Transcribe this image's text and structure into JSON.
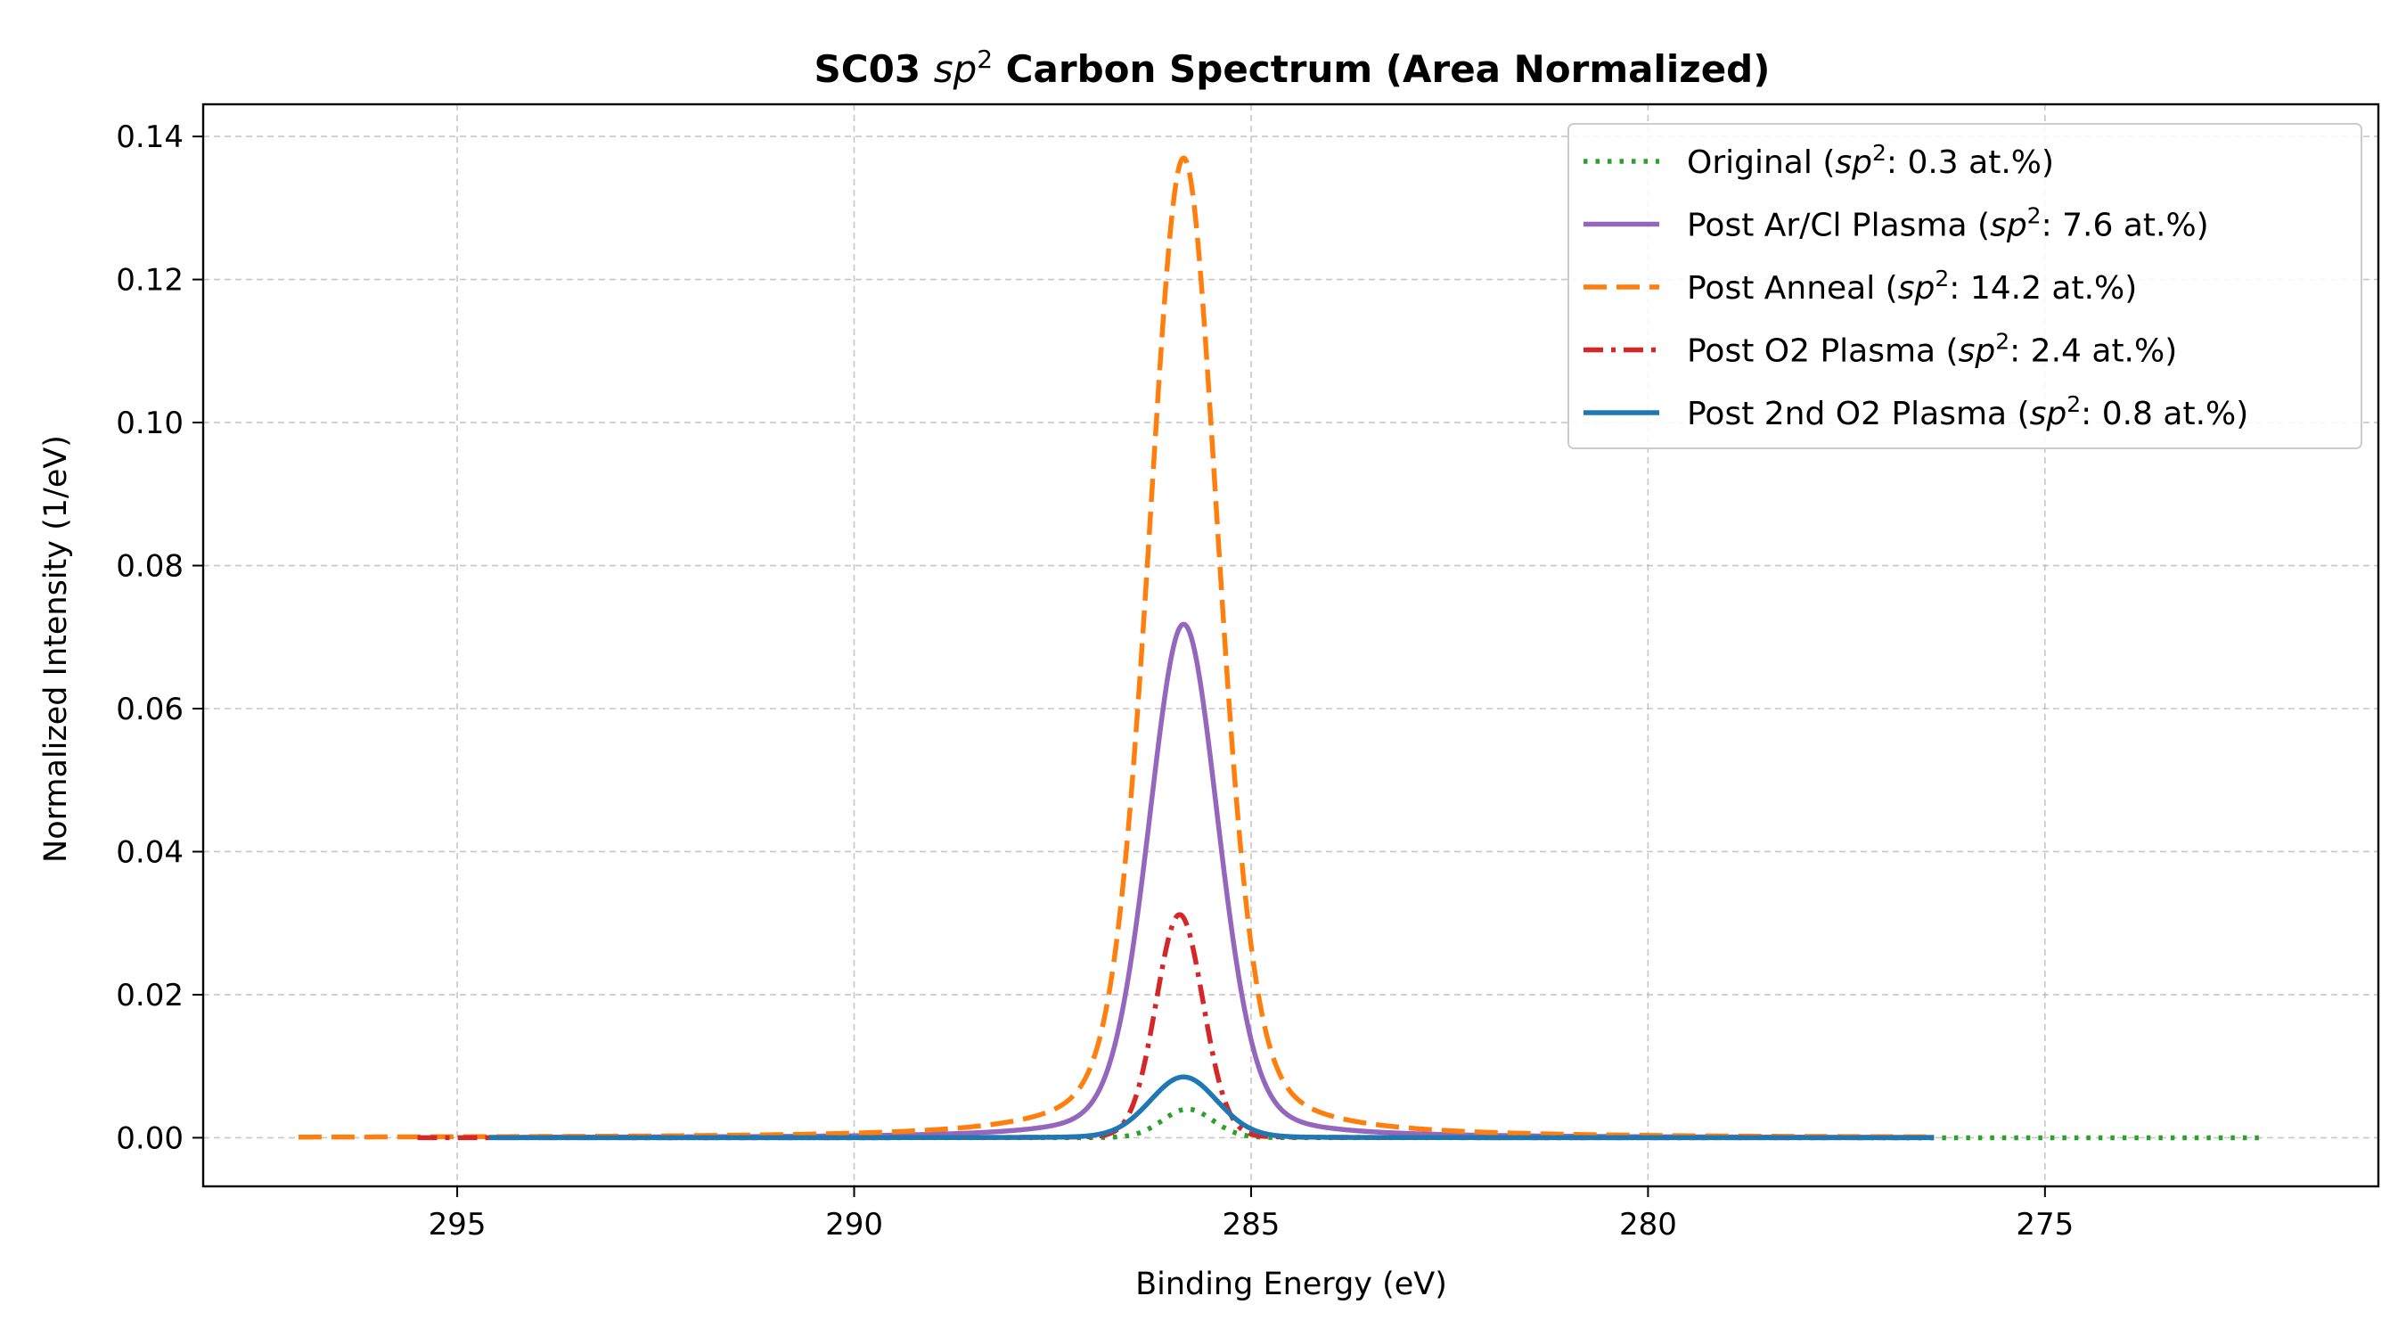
{
  "chart_data": {
    "type": "line",
    "title": {
      "prefix": "SC03 ",
      "math_base": "sp",
      "math_sup": "2",
      "suffix": " Carbon Spectrum (Area Normalized)"
    },
    "xlabel": "Binding Energy (eV)",
    "ylabel": "Normalized Intensity (1/eV)",
    "xlim": [
      298.2,
      270.8
    ],
    "ylim": [
      -0.0068,
      0.1445
    ],
    "x_inverted": true,
    "x_ticks": [
      295,
      290,
      285,
      280,
      275
    ],
    "y_ticks": [
      0.0,
      0.02,
      0.04,
      0.06,
      0.08,
      0.1,
      0.12,
      0.14
    ],
    "y_tick_labels": [
      "0.00",
      "0.02",
      "0.04",
      "0.06",
      "0.08",
      "0.10",
      "0.12",
      "0.14"
    ],
    "grid": true,
    "legend_position": "top-right",
    "series": [
      {
        "name": "Original",
        "legend_label": {
          "prefix": "Original (",
          "math_base": "sp",
          "math_sup": "2",
          "suffix": ": 0.3 at.%)"
        },
        "color": "#2ca02c",
        "style": "dotted",
        "x_range": [
          292.8,
          272.3
        ],
        "peak_center": 285.8,
        "peak_height": 0.004,
        "peak_fwhm": 0.75,
        "lorentz_fraction": 0.05
      },
      {
        "name": "Post Ar/Cl Plasma",
        "legend_label": {
          "prefix": "Post Ar/Cl Plasma (",
          "math_base": "sp",
          "math_sup": "2",
          "suffix": ": 7.6 at.%)"
        },
        "color": "#9467bd",
        "style": "solid",
        "x_range": [
          294.6,
          276.4
        ],
        "peak_center": 285.85,
        "peak_height": 0.0718,
        "peak_fwhm": 1.05,
        "lorentz_fraction": 0.25
      },
      {
        "name": "Post Anneal",
        "legend_label": {
          "prefix": "Post Anneal (",
          "math_base": "sp",
          "math_sup": "2",
          "suffix": ": 14.2 at.%)"
        },
        "color": "#ff7f0e",
        "style": "dashed",
        "x_range": [
          297.0,
          276.4
        ],
        "peak_center": 285.85,
        "peak_height": 0.137,
        "peak_fwhm": 1.05,
        "lorentz_fraction": 0.3
      },
      {
        "name": "Post O2 Plasma",
        "legend_label": {
          "prefix": "Post O2 Plasma (",
          "math_base": "sp",
          "math_sup": "2",
          "suffix": ": 2.4 at.%)"
        },
        "color": "#d62728",
        "style": "dashdot",
        "x_range": [
          295.5,
          276.4
        ],
        "peak_center": 285.9,
        "peak_height": 0.0312,
        "peak_fwhm": 0.7,
        "lorentz_fraction": 0.05
      },
      {
        "name": "Post 2nd O2 Plasma",
        "legend_label": {
          "prefix": "Post 2nd O2 Plasma (",
          "math_base": "sp",
          "math_sup": "2",
          "suffix": ": 0.8 at.%)"
        },
        "color": "#1f77b4",
        "style": "solid",
        "x_range": [
          294.6,
          276.4
        ],
        "peak_center": 285.85,
        "peak_height": 0.0085,
        "peak_fwhm": 1.0,
        "lorentz_fraction": 0.1
      }
    ]
  }
}
